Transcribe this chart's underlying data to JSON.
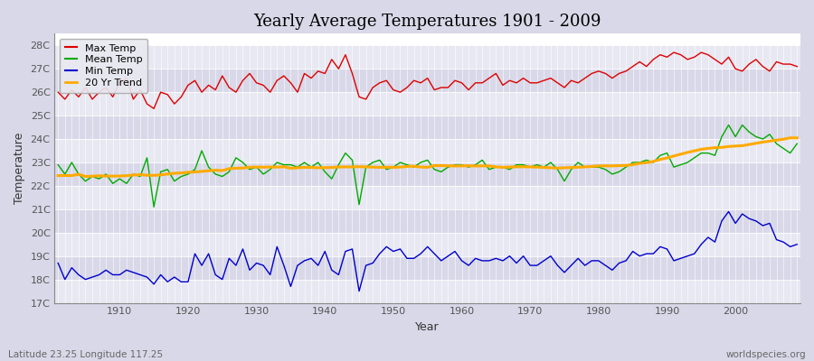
{
  "title": "Yearly Average Temperatures 1901 - 2009",
  "xlabel": "Year",
  "ylabel": "Temperature",
  "subtitle_lat": "Latitude 23.25 Longitude 117.25",
  "credit": "worldspecies.org",
  "year_start": 1901,
  "year_end": 2009,
  "ylim": [
    17,
    28.5
  ],
  "yticks": [
    17,
    18,
    19,
    20,
    21,
    22,
    23,
    24,
    25,
    26,
    27,
    28
  ],
  "ytick_labels": [
    "17C",
    "18C",
    "19C",
    "20C",
    "21C",
    "22C",
    "23C",
    "24C",
    "25C",
    "26C",
    "27C",
    "28C"
  ],
  "background_color": "#d8d8e8",
  "plot_bg_light": "#e8e8f2",
  "plot_bg_dark": "#d8d8e8",
  "grid_color": "#ffffff",
  "legend_bg": "#e8e8f0",
  "max_temp_color": "#dd0000",
  "mean_temp_color": "#00aa00",
  "min_temp_color": "#0000cc",
  "trend_color": "#ffaa00",
  "max_temp": [
    26.0,
    25.7,
    26.1,
    25.8,
    26.2,
    25.7,
    26.0,
    26.2,
    25.8,
    26.4,
    26.6,
    25.7,
    26.1,
    25.5,
    25.3,
    26.0,
    25.9,
    25.5,
    25.8,
    26.3,
    26.5,
    26.0,
    26.3,
    26.1,
    26.7,
    26.2,
    26.0,
    26.5,
    26.8,
    26.4,
    26.3,
    26.0,
    26.5,
    26.7,
    26.4,
    26.0,
    26.8,
    26.6,
    26.9,
    26.8,
    27.4,
    27.0,
    27.6,
    26.8,
    25.8,
    25.7,
    26.2,
    26.4,
    26.5,
    26.1,
    26.0,
    26.2,
    26.5,
    26.4,
    26.6,
    26.1,
    26.2,
    26.2,
    26.5,
    26.4,
    26.1,
    26.4,
    26.4,
    26.6,
    26.8,
    26.3,
    26.5,
    26.4,
    26.6,
    26.4,
    26.4,
    26.5,
    26.6,
    26.4,
    26.2,
    26.5,
    26.4,
    26.6,
    26.8,
    26.9,
    26.8,
    26.6,
    26.8,
    26.9,
    27.1,
    27.3,
    27.1,
    27.4,
    27.6,
    27.5,
    27.7,
    27.6,
    27.4,
    27.5,
    27.7,
    27.6,
    27.4,
    27.2,
    27.5,
    27.0,
    26.9,
    27.2,
    27.4,
    27.1,
    26.9,
    27.3,
    27.2,
    27.2,
    27.1
  ],
  "mean_temp": [
    22.9,
    22.5,
    23.0,
    22.5,
    22.2,
    22.4,
    22.3,
    22.5,
    22.1,
    22.3,
    22.1,
    22.5,
    22.4,
    23.2,
    21.1,
    22.6,
    22.7,
    22.2,
    22.4,
    22.5,
    22.7,
    23.5,
    22.8,
    22.5,
    22.4,
    22.6,
    23.2,
    23.0,
    22.7,
    22.8,
    22.5,
    22.7,
    23.0,
    22.9,
    22.9,
    22.8,
    23.0,
    22.8,
    23.0,
    22.6,
    22.3,
    22.9,
    23.4,
    23.1,
    21.2,
    22.8,
    23.0,
    23.1,
    22.7,
    22.8,
    23.0,
    22.9,
    22.8,
    23.0,
    23.1,
    22.7,
    22.6,
    22.8,
    22.9,
    22.9,
    22.8,
    22.9,
    23.1,
    22.7,
    22.8,
    22.8,
    22.7,
    22.9,
    22.9,
    22.8,
    22.9,
    22.8,
    23.0,
    22.7,
    22.2,
    22.7,
    23.0,
    22.8,
    22.8,
    22.8,
    22.7,
    22.5,
    22.6,
    22.8,
    23.0,
    23.0,
    23.1,
    23.0,
    23.3,
    23.4,
    22.8,
    22.9,
    23.0,
    23.2,
    23.4,
    23.4,
    23.3,
    24.1,
    24.6,
    24.1,
    24.6,
    24.3,
    24.1,
    24.0,
    24.2,
    23.8,
    23.6,
    23.4,
    23.8
  ],
  "min_temp": [
    18.7,
    18.0,
    18.5,
    18.2,
    18.0,
    18.1,
    18.2,
    18.4,
    18.2,
    18.2,
    18.4,
    18.3,
    18.2,
    18.1,
    17.8,
    18.2,
    17.9,
    18.1,
    17.9,
    17.9,
    19.1,
    18.6,
    19.1,
    18.2,
    18.0,
    18.9,
    18.6,
    19.3,
    18.4,
    18.7,
    18.6,
    18.2,
    19.4,
    18.6,
    17.7,
    18.6,
    18.8,
    18.9,
    18.6,
    19.2,
    18.4,
    18.2,
    19.2,
    19.3,
    17.5,
    18.6,
    18.7,
    19.1,
    19.4,
    19.2,
    19.3,
    18.9,
    18.9,
    19.1,
    19.4,
    19.1,
    18.8,
    19.0,
    19.2,
    18.8,
    18.6,
    18.9,
    18.8,
    18.8,
    18.9,
    18.8,
    19.0,
    18.7,
    19.0,
    18.6,
    18.6,
    18.8,
    19.0,
    18.6,
    18.3,
    18.6,
    18.9,
    18.6,
    18.8,
    18.8,
    18.6,
    18.4,
    18.7,
    18.8,
    19.2,
    19.0,
    19.1,
    19.1,
    19.4,
    19.3,
    18.8,
    18.9,
    19.0,
    19.1,
    19.5,
    19.8,
    19.6,
    20.5,
    20.9,
    20.4,
    20.8,
    20.6,
    20.5,
    20.3,
    20.4,
    19.7,
    19.6,
    19.4,
    19.5
  ]
}
